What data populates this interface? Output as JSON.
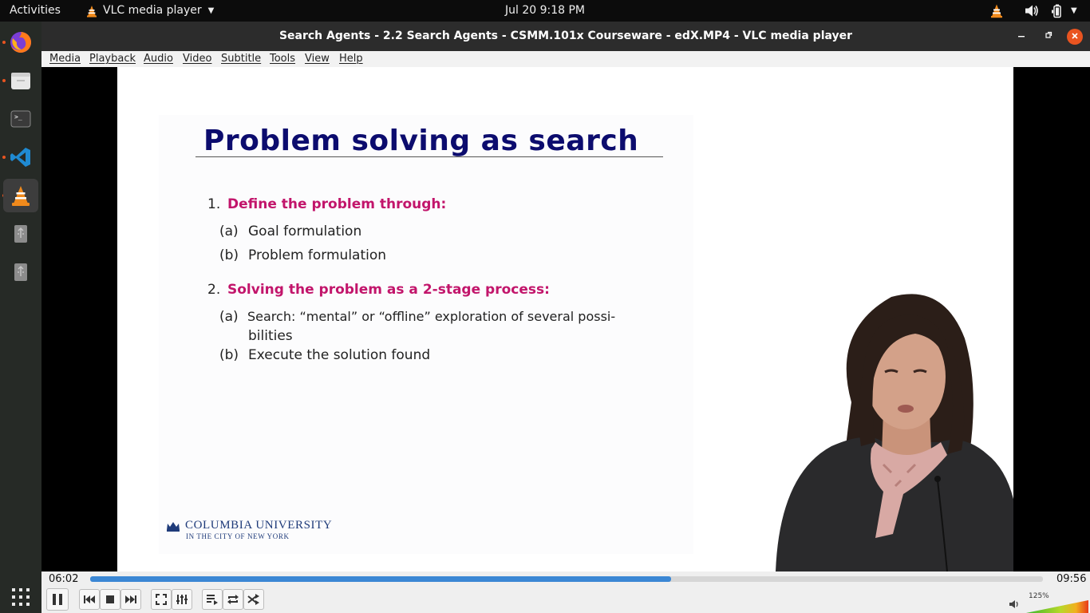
{
  "topbar": {
    "activities": "Activities",
    "app_name": "VLC media player",
    "clock": "Jul 20  9:18 PM"
  },
  "dock": {
    "items": [
      "firefox",
      "files",
      "terminal",
      "vscode",
      "vlc",
      "usb-drive",
      "usb-drive"
    ]
  },
  "window": {
    "title": "Search Agents - 2.2 Search Agents - CSMM.101x Courseware - edX.MP4 - VLC media player"
  },
  "menubar": {
    "items": [
      "Media",
      "Playback",
      "Audio",
      "Video",
      "Subtitle",
      "Tools",
      "View",
      "Help"
    ]
  },
  "slide": {
    "title": "Problem solving as search",
    "item1_num": "1.",
    "item1_head": "Define the problem through:",
    "item1_a_label": "(a)",
    "item1_a": "Goal formulation",
    "item1_b_label": "(b)",
    "item1_b": "Problem formulation",
    "item2_num": "2.",
    "item2_head": "Solving the problem as a 2-stage process:",
    "item2_a_label": "(a)",
    "item2_a_line1": "Search:  “mental”  or  “offline”  exploration  of  several  possi-",
    "item2_a_line2": "bilities",
    "item2_b_label": "(b)",
    "item2_b": "Execute the solution found",
    "logo_line1": "COLUMBIA UNIVERSITY",
    "logo_line2": "IN THE CITY OF NEW YORK"
  },
  "player": {
    "elapsed": "06:02",
    "total": "09:56",
    "progress_fraction": 0.61,
    "volume_label": "125%",
    "volume_fraction": 1.0
  },
  "colors": {
    "accent": "#e95420",
    "seek_fill": "#3b87d4",
    "slide_title": "#0c0c6e",
    "slide_highlight": "#c2156b"
  }
}
